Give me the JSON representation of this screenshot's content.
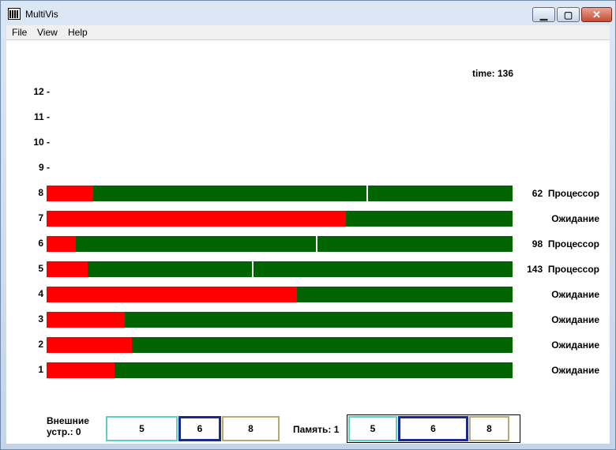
{
  "window": {
    "title": "MultiVis"
  },
  "menu": [
    "File",
    "View",
    "Help"
  ],
  "time_label": "time: 136",
  "y_labels": [
    "12 -",
    "11 -",
    "10 -",
    "9 -",
    "8",
    "7",
    "6",
    "5",
    "4",
    "3",
    "2",
    "1"
  ],
  "processes": [
    {
      "id": "8",
      "red_fraction": 0.1,
      "marker_fraction": 0.687,
      "status": "62  Процессор"
    },
    {
      "id": "7",
      "red_fraction": 0.643,
      "marker_fraction": null,
      "status": "Ожидание"
    },
    {
      "id": "6",
      "red_fraction": 0.063,
      "marker_fraction": 0.578,
      "status": "98  Процессор"
    },
    {
      "id": "5",
      "red_fraction": 0.088,
      "marker_fraction": 0.44,
      "status": "143  Процессор"
    },
    {
      "id": "4",
      "red_fraction": 0.537,
      "marker_fraction": null,
      "status": "Ожидание"
    },
    {
      "id": "3",
      "red_fraction": 0.167,
      "marker_fraction": null,
      "status": "Ожидание"
    },
    {
      "id": "2",
      "red_fraction": 0.183,
      "marker_fraction": null,
      "status": "Ожидание"
    },
    {
      "id": "1",
      "red_fraction": 0.146,
      "marker_fraction": null,
      "status": "Ожидание"
    }
  ],
  "devices": {
    "label_line1": "Внешние",
    "label_line2": "устр.: 0",
    "queue": [
      "5",
      "6",
      "8"
    ]
  },
  "memory": {
    "label": "Память: 1",
    "blocks": [
      "5",
      "6",
      "8"
    ]
  },
  "colors": {
    "running": "#006400",
    "waiting": "#ff0000",
    "block5": "#66ccbb",
    "block6": "#1c2a8c",
    "block8": "#b8a878"
  }
}
